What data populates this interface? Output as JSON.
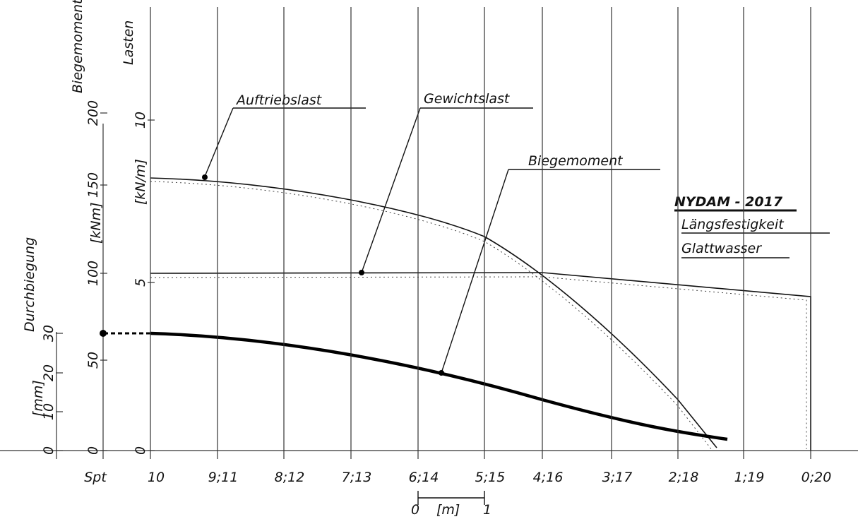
{
  "title": {
    "line1": "NYDAM - 2017",
    "line2": "Längsfestigkeit",
    "line3": "Glattwasser"
  },
  "labels": {
    "auftrieb": "Auftriebslast",
    "gewicht": "Gewichtslast",
    "biege": "Biegemoment"
  },
  "axes": {
    "biegemoment": {
      "title": "Biegemoment",
      "unit": "[kNm]",
      "ticks": [
        "0",
        "50",
        "100",
        "150",
        "200"
      ]
    },
    "lasten": {
      "title": "Lasten",
      "unit": "[kN/m]",
      "ticks": [
        "0",
        "5",
        "10"
      ]
    },
    "durchbiegung": {
      "title": "Durchbiegung",
      "unit": "[mm]",
      "ticks": [
        "0",
        "10",
        "20",
        "30"
      ]
    }
  },
  "stations": [
    "Spt",
    "10",
    "9;11",
    "8;12",
    "7;13",
    "6;14",
    "5;15",
    "4;16",
    "3;17",
    "2;18",
    "1;19",
    "0;20"
  ],
  "scale": {
    "zero": "0",
    "unit": "[m]",
    "one": "1"
  }
}
